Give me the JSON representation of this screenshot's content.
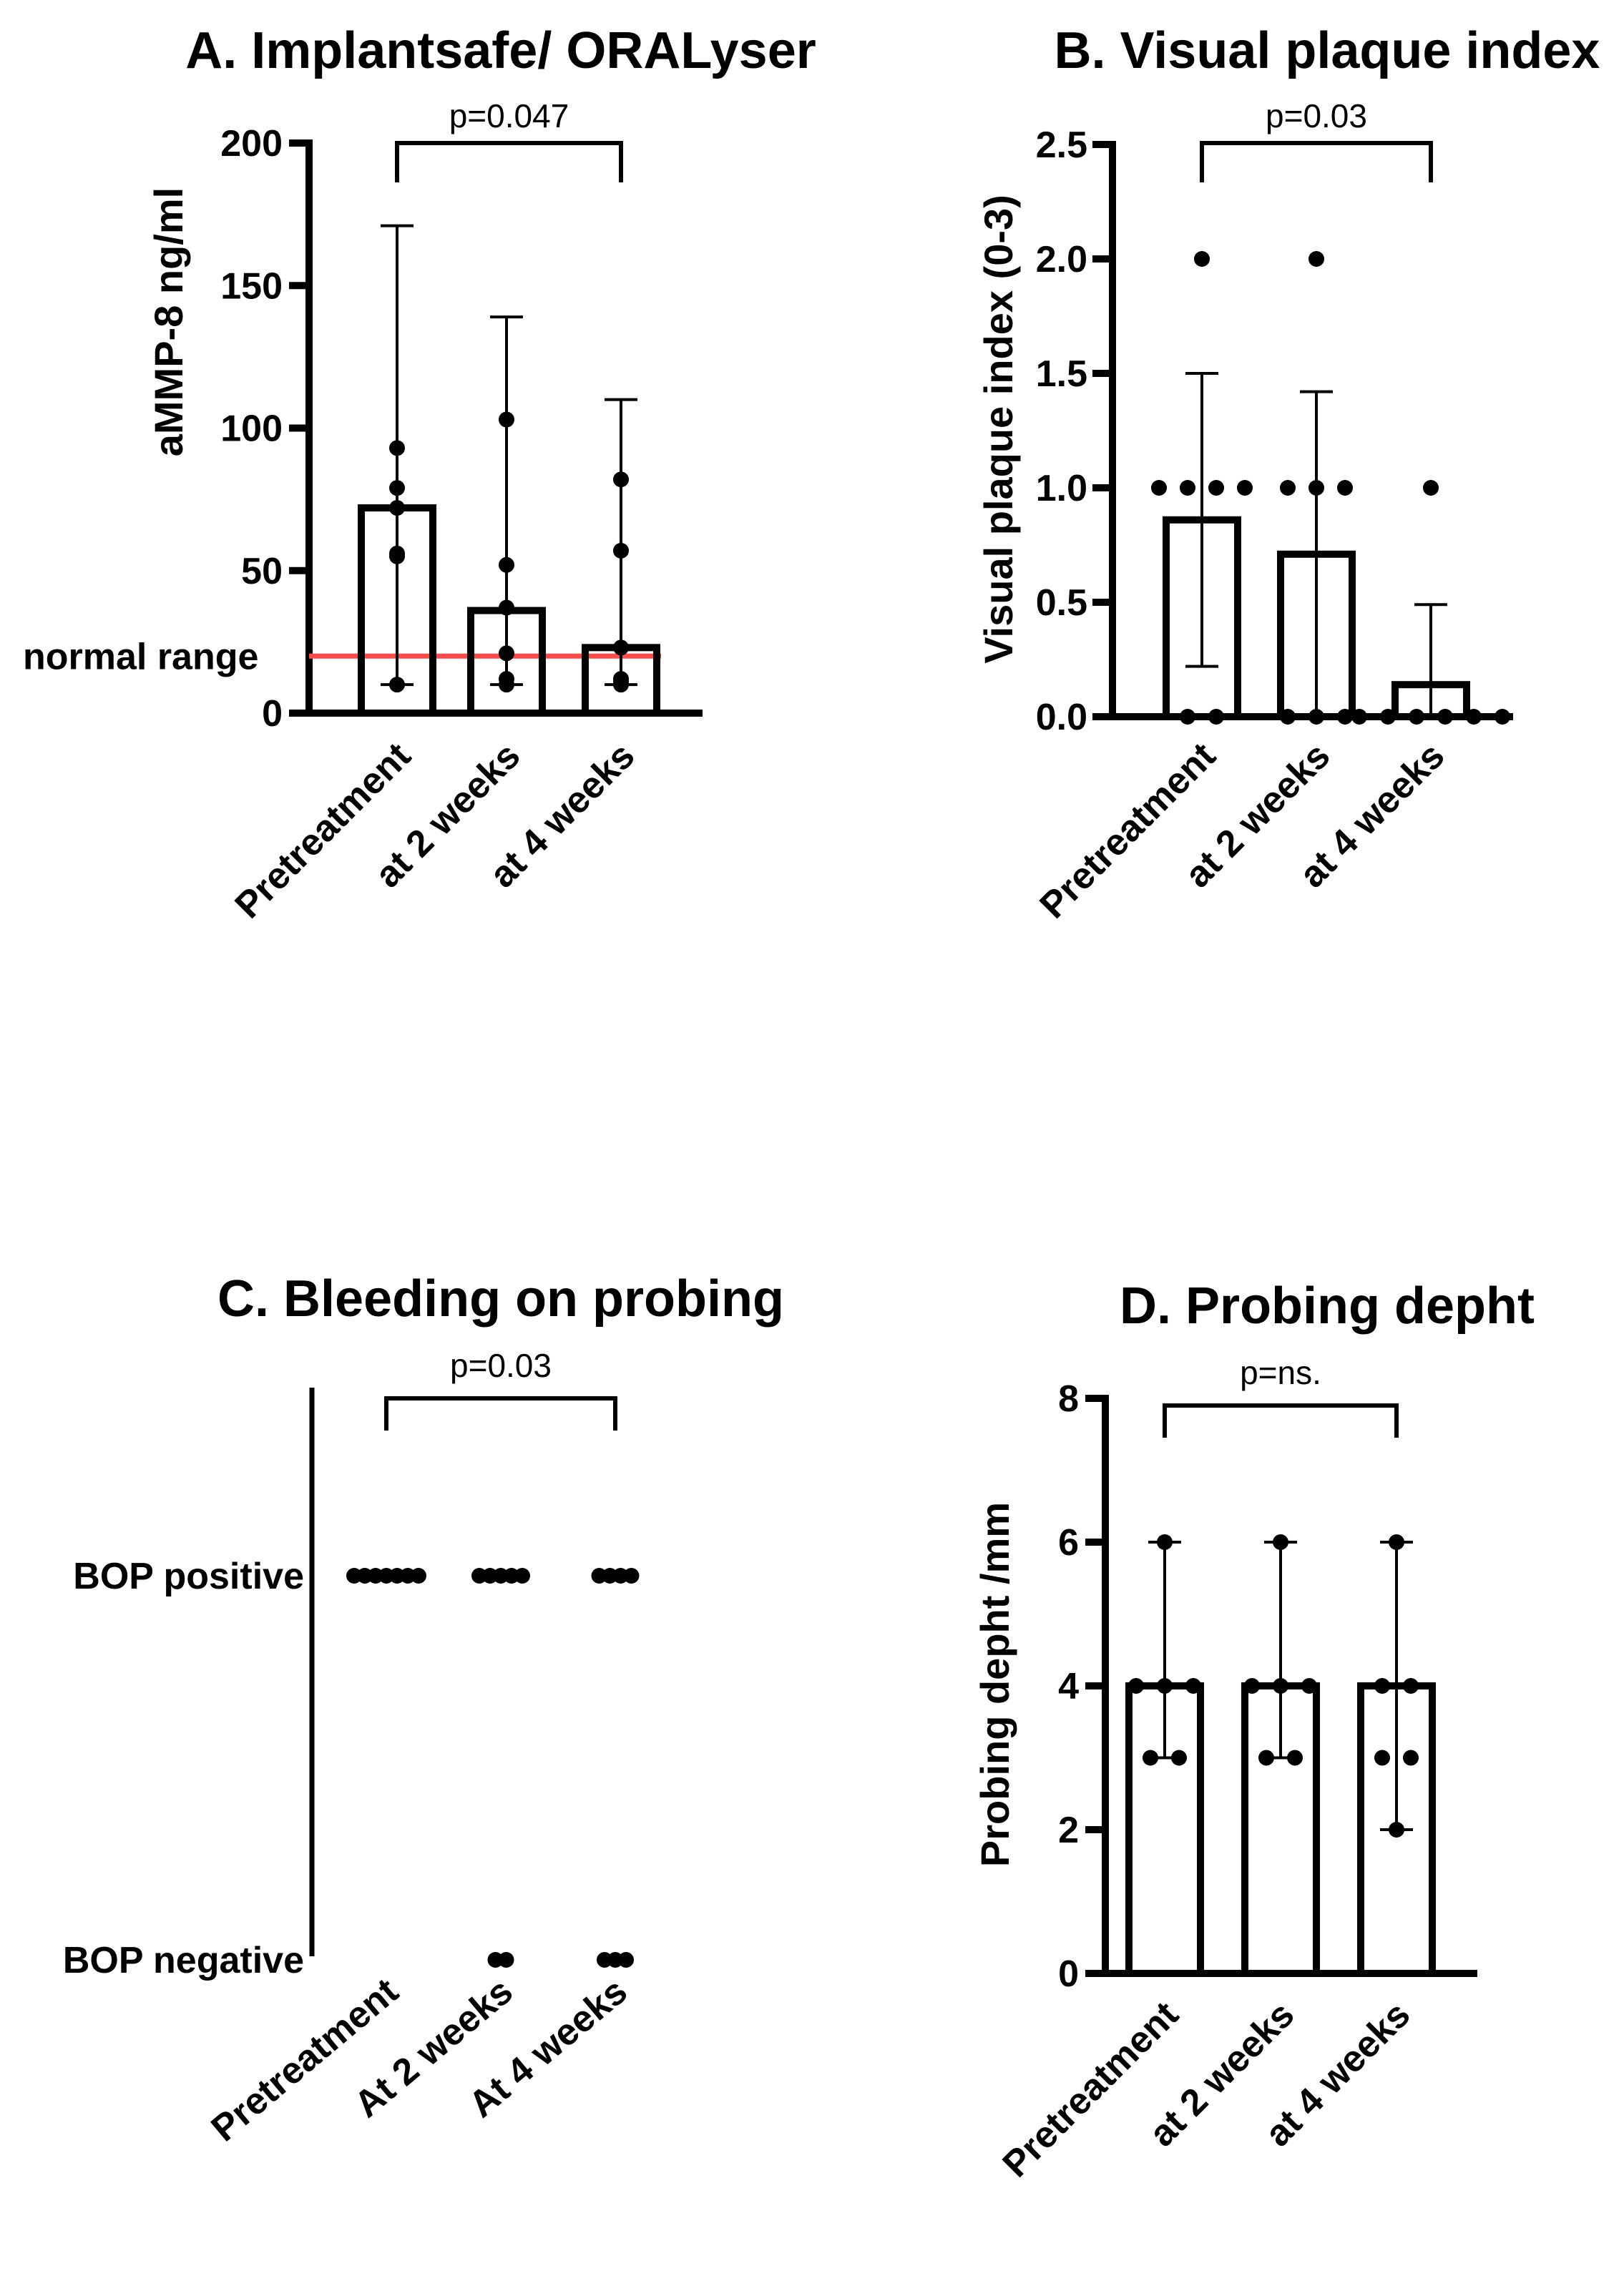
{
  "chart_data": [
    {
      "panel": "A",
      "type": "bar",
      "title": "A. Implantsafe/ ORALyser",
      "ylabel": "aMMP-8 ng/ml",
      "ylim": [
        0,
        200
      ],
      "yticks": [
        0,
        50,
        100,
        150,
        200
      ],
      "categories": [
        "Pretreatment",
        "at 2 weeks",
        "at 4 weeks"
      ],
      "bars": [
        72,
        36,
        23
      ],
      "error_bars": [
        [
          10,
          171
        ],
        [
          10,
          139
        ],
        [
          10,
          110
        ]
      ],
      "points": [
        [
          93,
          79,
          72,
          56,
          55,
          10
        ],
        [
          103,
          52,
          37,
          21,
          12,
          10
        ],
        [
          82,
          57,
          23,
          12,
          11,
          10
        ]
      ],
      "reference_line": {
        "label": "normal range",
        "value": 20,
        "color": "#ff4a4a"
      },
      "significance": {
        "text": "p=0.047",
        "from": 0,
        "to": 2
      },
      "grid": false
    },
    {
      "panel": "B",
      "type": "bar",
      "title": "B. Visual plaque index",
      "ylabel": "Visual plaque index (0-3)",
      "ylim": [
        0,
        2.5
      ],
      "yticks": [
        "0.0",
        "0.5",
        "1.0",
        "1.5",
        "2.0",
        "2.5"
      ],
      "categories": [
        "Pretreatment",
        "at 2 weeks",
        "at 4 weeks"
      ],
      "bars": [
        0.86,
        0.71,
        0.14
      ],
      "error_bars": [
        [
          0.22,
          1.5
        ],
        [
          0,
          1.42
        ],
        [
          0,
          0.49
        ]
      ],
      "points": [
        [
          2,
          1,
          1,
          1,
          1,
          0,
          0
        ],
        [
          2,
          1,
          1,
          1,
          0,
          0,
          0
        ],
        [
          1,
          0,
          0,
          0,
          0,
          0,
          0
        ]
      ],
      "significance": {
        "text": "p=0.03",
        "from": 0,
        "to": 2
      },
      "grid": false
    },
    {
      "panel": "C",
      "type": "scatter",
      "title": "C. Bleeding on probing",
      "levels": [
        "BOP positive",
        "BOP negative"
      ],
      "categories": [
        "Pretreatment",
        "At 2 weeks",
        "At 4 weeks"
      ],
      "counts": {
        "positive": [
          7,
          5,
          4
        ],
        "negative": [
          0,
          2,
          3
        ]
      },
      "significance": {
        "text": "p=0.03",
        "from": 0,
        "to": 2
      },
      "grid": false
    },
    {
      "panel": "D",
      "type": "bar",
      "title": "D. Probing depht",
      "ylabel": "Probing depht /mm",
      "ylim": [
        0,
        8
      ],
      "yticks": [
        0,
        2,
        4,
        6,
        8
      ],
      "categories": [
        "Pretreatment",
        "at 2 weeks",
        "at 4 weeks"
      ],
      "bars": [
        4,
        4,
        4
      ],
      "error_bars": [
        [
          3,
          6
        ],
        [
          3,
          6
        ],
        [
          2,
          6
        ]
      ],
      "points": [
        [
          6,
          4,
          4,
          4,
          3,
          3
        ],
        [
          6,
          4,
          4,
          4,
          3,
          3
        ],
        [
          6,
          4,
          4,
          3,
          3,
          2
        ]
      ],
      "significance": {
        "text": "p=ns.",
        "from": 0,
        "to": 2
      },
      "grid": false
    }
  ]
}
